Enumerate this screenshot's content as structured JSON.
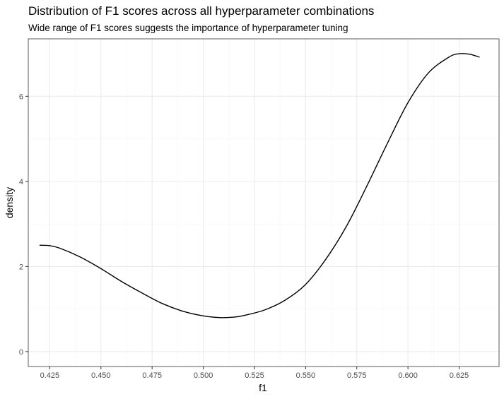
{
  "chart_data": {
    "type": "line",
    "title": "Distribution of F1 scores across all hyperparameter combinations",
    "subtitle": "Wide range of F1 scores suggests the importance of hyperparameter tuning",
    "xlabel": "f1",
    "ylabel": "density",
    "xlim": [
      0.4145,
      0.6445
    ],
    "ylim": [
      -0.35,
      7.35
    ],
    "x_ticks": [
      0.425,
      0.45,
      0.475,
      0.5,
      0.525,
      0.55,
      0.575,
      0.6,
      0.625
    ],
    "x_tick_labels": [
      "0.425",
      "0.450",
      "0.475",
      "0.500",
      "0.525",
      "0.550",
      "0.575",
      "0.600",
      "0.625"
    ],
    "y_ticks": [
      0,
      2,
      4,
      6
    ],
    "y_tick_labels": [
      "0",
      "2",
      "4",
      "6"
    ],
    "grid": true,
    "series": [
      {
        "x": [
          0.42,
          0.425,
          0.43,
          0.44,
          0.45,
          0.46,
          0.47,
          0.48,
          0.49,
          0.5,
          0.508,
          0.515,
          0.52,
          0.53,
          0.54,
          0.55,
          0.56,
          0.57,
          0.58,
          0.59,
          0.6,
          0.61,
          0.62,
          0.625,
          0.63,
          0.635
        ],
        "values": [
          2.5,
          2.49,
          2.43,
          2.22,
          1.95,
          1.65,
          1.38,
          1.13,
          0.95,
          0.84,
          0.8,
          0.81,
          0.85,
          0.98,
          1.21,
          1.58,
          2.18,
          2.95,
          3.9,
          4.9,
          5.85,
          6.55,
          6.92,
          7.0,
          6.99,
          6.92
        ]
      }
    ],
    "colors": {
      "line": "#000000",
      "panel_background": "#ffffff",
      "panel_border": "#333333",
      "grid_major": "#ebebeb",
      "grid_minor": "#f5f5f5",
      "tick_label": "#4d4d4d"
    }
  }
}
